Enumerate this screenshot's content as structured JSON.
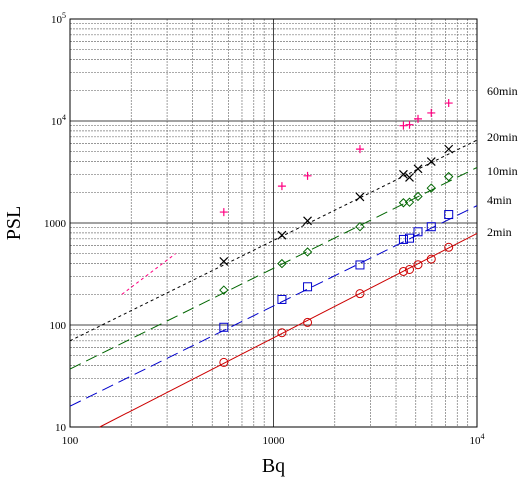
{
  "chart_data": {
    "type": "scatter",
    "title": "",
    "xlabel": "Bq",
    "ylabel": "PSL",
    "xscale": "log",
    "yscale": "log",
    "xlim": [
      100,
      10000
    ],
    "ylim": [
      10,
      100000
    ],
    "grid": true,
    "x_ticks": [
      {
        "value": 100,
        "label": "100"
      },
      {
        "value": 1000,
        "label": "1000"
      },
      {
        "value": 10000,
        "label": "10",
        "sup": "4"
      }
    ],
    "y_ticks": [
      {
        "value": 10,
        "label": "10"
      },
      {
        "value": 100,
        "label": "100"
      },
      {
        "value": 1000,
        "label": "1000"
      },
      {
        "value": 10000,
        "label": "10",
        "sup": "4"
      },
      {
        "value": 100000,
        "label": "10",
        "sup": "5"
      }
    ],
    "series": [
      {
        "name": "2min",
        "color": "#cc0000",
        "marker": "circle",
        "line": "solid",
        "x": [
          570,
          1100,
          1470,
          2660,
          4350,
          4660,
          5130,
          5960,
          7260
        ],
        "y": [
          43,
          84,
          106,
          203,
          335,
          350,
          390,
          443,
          578
        ],
        "fit_x": [
          140,
          10000
        ],
        "fit_y": [
          10,
          790
        ]
      },
      {
        "name": "4min",
        "color": "#0000cc",
        "marker": "square",
        "line": "dashed",
        "x": [
          570,
          1100,
          1470,
          2660,
          4350,
          4660,
          5130,
          5960,
          7260
        ],
        "y": [
          95,
          178,
          237,
          388,
          690,
          710,
          820,
          920,
          1210
        ],
        "fit_x": [
          100,
          10000
        ],
        "fit_y": [
          16,
          1480
        ]
      },
      {
        "name": "10min",
        "color": "#006600",
        "marker": "diamond",
        "line": "dashed",
        "x": [
          570,
          1100,
          1470,
          2660,
          4350,
          4660,
          5130,
          5960,
          7260
        ],
        "y": [
          220,
          400,
          520,
          920,
          1580,
          1600,
          1820,
          2200,
          2850
        ],
        "fit_x": [
          100,
          10000
        ],
        "fit_y": [
          37,
          3500
        ]
      },
      {
        "name": "20min",
        "color": "#000000",
        "marker": "x",
        "line": "dotted",
        "x": [
          570,
          1100,
          1470,
          2660,
          4350,
          4660,
          5130,
          5960,
          7260
        ],
        "y": [
          420,
          760,
          1050,
          1800,
          3000,
          2800,
          3400,
          4000,
          5300
        ],
        "fit_x": [
          100,
          10000
        ],
        "fit_y": [
          70,
          6500
        ]
      },
      {
        "name": "60min",
        "color": "#ff0080",
        "marker": "plus",
        "line": "dotted",
        "x": [
          570,
          1100,
          1470,
          2660,
          4350,
          4660,
          5130,
          5960,
          7260
        ],
        "y": [
          1280,
          2300,
          2900,
          5300,
          9000,
          9200,
          10500,
          12000,
          15000
        ],
        "fit_x": [
          180,
          330
        ],
        "fit_y": [
          200,
          500
        ]
      }
    ]
  }
}
